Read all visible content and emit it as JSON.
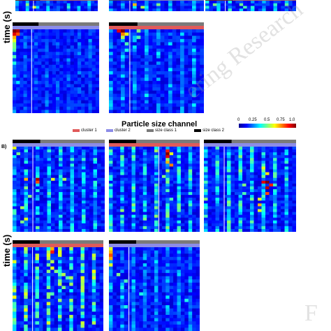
{
  "chart_data": {
    "type": "heatmap",
    "title": "Particle size channel",
    "ylabel": "time (s)",
    "panel_label": "B)",
    "watermark_text": "ering Research",
    "watermark_text_2": "F",
    "legend": [
      {
        "label": "cluster 1",
        "color": "#e05a5a"
      },
      {
        "label": "cluster 2",
        "color": "#8c8ce8"
      },
      {
        "label": "size class 1",
        "color": "#7a7a7a"
      },
      {
        "label": "size class 2",
        "color": "#000000"
      }
    ],
    "colorbar": {
      "ticks": [
        "0",
        "0.25",
        "0.5",
        "0.75",
        "1.0"
      ],
      "range": [
        0,
        1
      ]
    },
    "panels": [
      {
        "id": "top-a",
        "rows": 4,
        "cols": 24,
        "hot": [
          [
            1,
            3,
            0.5
          ],
          [
            2,
            5,
            0.6
          ]
        ],
        "stripe": 0.25
      },
      {
        "id": "top-b",
        "rows": 4,
        "cols": 24,
        "hot": [
          [
            1,
            6,
            0.7
          ],
          [
            2,
            8,
            0.55
          ],
          [
            1,
            12,
            0.5
          ]
        ],
        "stripe": 0.2
      },
      {
        "id": "top-c",
        "rows": 4,
        "cols": 24,
        "hot": [
          [
            1,
            2,
            0.5
          ],
          [
            2,
            10,
            0.45
          ]
        ],
        "stripe": 0.35
      },
      {
        "id": "mid-a",
        "rows": 26,
        "cols": 24,
        "hot": [
          [
            0,
            0,
            1.0
          ],
          [
            0,
            1,
            0.95
          ],
          [
            1,
            0,
            0.9
          ],
          [
            1,
            1,
            0.8
          ],
          [
            2,
            0,
            0.7
          ],
          [
            3,
            0,
            0.6
          ],
          [
            4,
            0,
            0.5
          ],
          [
            5,
            0,
            0.5
          ],
          [
            6,
            0,
            0.45
          ],
          [
            8,
            0,
            0.45
          ],
          [
            10,
            0,
            0.4
          ],
          [
            14,
            0,
            0.35
          ],
          [
            16,
            1,
            0.35
          ]
        ],
        "stripe": 0.1
      },
      {
        "id": "mid-b",
        "rows": 26,
        "cols": 24,
        "hot": [
          [
            0,
            2,
            0.9
          ],
          [
            0,
            3,
            1.0
          ],
          [
            1,
            3,
            0.75
          ],
          [
            1,
            4,
            0.6
          ],
          [
            2,
            3,
            0.55
          ],
          [
            0,
            7,
            0.5
          ],
          [
            2,
            7,
            0.45
          ],
          [
            4,
            4,
            0.45
          ],
          [
            6,
            4,
            0.4
          ],
          [
            8,
            3,
            0.35
          ]
        ],
        "stripe": 0.2
      },
      {
        "id": "bot-a",
        "rows": 30,
        "cols": 24,
        "hot": [
          [
            0,
            0,
            0.6
          ],
          [
            2,
            1,
            0.5
          ],
          [
            11,
            3,
            0.7
          ],
          [
            11,
            6,
            0.95
          ],
          [
            12,
            6,
            0.8
          ],
          [
            11,
            10,
            0.6
          ],
          [
            11,
            13,
            0.55
          ],
          [
            14,
            3,
            0.5
          ],
          [
            17,
            4,
            0.5
          ],
          [
            21,
            2,
            0.55
          ],
          [
            25,
            3,
            0.6
          ],
          [
            26,
            2,
            0.5
          ]
        ],
        "stripe": 0.3
      },
      {
        "id": "bot-b",
        "rows": 30,
        "cols": 24,
        "hot": [
          [
            1,
            15,
            0.85
          ],
          [
            2,
            15,
            1.0
          ],
          [
            3,
            15,
            0.9
          ],
          [
            5,
            15,
            0.7
          ],
          [
            6,
            16,
            0.75
          ],
          [
            2,
            16,
            0.6
          ],
          [
            8,
            15,
            0.55
          ],
          [
            10,
            14,
            0.5
          ],
          [
            12,
            15,
            0.5
          ],
          [
            15,
            15,
            0.45
          ],
          [
            18,
            16,
            0.45
          ],
          [
            22,
            15,
            0.45
          ]
        ],
        "stripe": 0.35
      },
      {
        "id": "bot-c",
        "rows": 30,
        "cols": 24,
        "hot": [
          [
            7,
            15,
            0.6
          ],
          [
            9,
            16,
            0.65
          ],
          [
            12,
            15,
            0.9
          ],
          [
            12,
            16,
            1.0
          ],
          [
            13,
            17,
            0.85
          ],
          [
            14,
            16,
            0.95
          ],
          [
            16,
            16,
            0.8
          ],
          [
            18,
            14,
            0.6
          ],
          [
            20,
            14,
            0.7
          ],
          [
            22,
            14,
            0.6
          ],
          [
            13,
            10,
            0.5
          ],
          [
            16,
            10,
            0.45
          ]
        ],
        "stripe": 0.35
      },
      {
        "id": "low-a",
        "rows": 26,
        "cols": 24,
        "hot": [
          [
            0,
            10,
            0.7
          ],
          [
            1,
            10,
            0.85
          ],
          [
            2,
            9,
            0.6
          ],
          [
            4,
            10,
            0.55
          ],
          [
            6,
            10,
            0.6
          ],
          [
            7,
            11,
            0.5
          ],
          [
            8,
            13,
            0.55
          ],
          [
            9,
            14,
            0.45
          ],
          [
            10,
            12,
            0.5
          ],
          [
            12,
            13,
            0.5
          ],
          [
            14,
            10,
            0.45
          ]
        ],
        "stripe": 0.45
      },
      {
        "id": "low-b",
        "rows": 26,
        "cols": 24,
        "hot": [
          [
            0,
            0,
            0.6
          ],
          [
            1,
            0,
            0.7
          ],
          [
            2,
            0,
            0.8
          ],
          [
            3,
            0,
            0.7
          ],
          [
            5,
            0,
            0.6
          ],
          [
            8,
            2,
            0.5
          ],
          [
            10,
            4,
            0.45
          ],
          [
            12,
            3,
            0.4
          ],
          [
            14,
            8,
            0.4
          ],
          [
            16,
            20,
            0.4
          ],
          [
            18,
            4,
            0.4
          ]
        ],
        "stripe": 0.2
      }
    ]
  }
}
